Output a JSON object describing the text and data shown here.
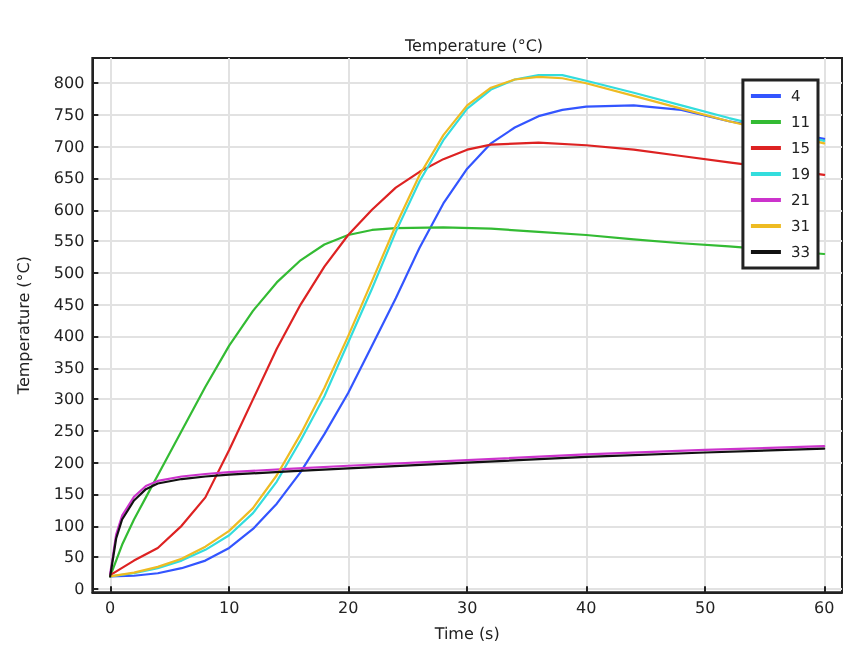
{
  "chart_data": {
    "type": "line",
    "title": "Temperature (°C)",
    "xlabel": "Time (s)",
    "ylabel": "Temperature (°C)",
    "xlim": [
      -1.5,
      61.5
    ],
    "ylim": [
      -5,
      840
    ],
    "xticks": [
      0,
      10,
      20,
      30,
      40,
      50,
      60
    ],
    "yticks": [
      0,
      50,
      100,
      150,
      200,
      250,
      300,
      350,
      400,
      450,
      500,
      550,
      600,
      650,
      700,
      750,
      800
    ],
    "grid": true,
    "legend": "top right",
    "marker": "none",
    "line_style": "solid",
    "series": [
      {
        "name": "4",
        "color": "#3355ff",
        "x": [
          0,
          2,
          4,
          6,
          8,
          10,
          12,
          14,
          16,
          18,
          20,
          22,
          24,
          26,
          28,
          30,
          32,
          34,
          36,
          38,
          40,
          44,
          48,
          52,
          60
        ],
        "values": [
          20,
          21,
          25,
          33,
          45,
          65,
          95,
          135,
          185,
          245,
          310,
          385,
          460,
          540,
          610,
          665,
          705,
          730,
          748,
          758,
          763,
          765,
          758,
          740,
          712
        ]
      },
      {
        "name": "11",
        "color": "#33bb33",
        "x": [
          0,
          1,
          2,
          3,
          4,
          6,
          8,
          10,
          12,
          14,
          16,
          18,
          20,
          22,
          24,
          28,
          32,
          36,
          40,
          44,
          48,
          52,
          60
        ],
        "values": [
          20,
          70,
          110,
          145,
          180,
          250,
          320,
          385,
          440,
          485,
          520,
          545,
          560,
          568,
          571,
          572,
          570,
          565,
          560,
          553,
          547,
          542,
          530
        ]
      },
      {
        "name": "15",
        "color": "#dd2222",
        "x": [
          0,
          2,
          4,
          6,
          8,
          10,
          12,
          14,
          16,
          18,
          20,
          22,
          24,
          26,
          28,
          30,
          32,
          36,
          40,
          44,
          48,
          52,
          60
        ],
        "values": [
          22,
          45,
          65,
          100,
          145,
          220,
          300,
          380,
          450,
          510,
          560,
          600,
          635,
          660,
          680,
          695,
          703,
          706,
          702,
          695,
          685,
          675,
          655
        ]
      },
      {
        "name": "19",
        "color": "#33dddd",
        "x": [
          0,
          2,
          4,
          6,
          8,
          10,
          12,
          14,
          16,
          18,
          20,
          22,
          24,
          26,
          28,
          30,
          32,
          34,
          36,
          38,
          40,
          44,
          48,
          52,
          60
        ],
        "values": [
          20,
          25,
          33,
          45,
          62,
          85,
          120,
          170,
          235,
          305,
          390,
          475,
          565,
          645,
          710,
          760,
          790,
          806,
          813,
          813,
          804,
          785,
          765,
          745,
          709
        ]
      },
      {
        "name": "21",
        "color": "#cc33cc",
        "x": [
          0,
          0.5,
          1,
          2,
          3,
          4,
          6,
          8,
          10,
          15,
          20,
          30,
          40,
          50,
          60
        ],
        "values": [
          24,
          86,
          116,
          146,
          163,
          171,
          178,
          182,
          185,
          190,
          195,
          204,
          213,
          220,
          226
        ]
      },
      {
        "name": "31",
        "color": "#eebb22",
        "x": [
          0,
          2,
          4,
          6,
          8,
          10,
          12,
          14,
          16,
          18,
          20,
          22,
          24,
          26,
          28,
          30,
          32,
          34,
          36,
          38,
          40,
          44,
          48,
          52,
          60
        ],
        "values": [
          20,
          26,
          35,
          48,
          67,
          92,
          128,
          180,
          245,
          318,
          400,
          487,
          575,
          655,
          718,
          765,
          793,
          806,
          810,
          808,
          800,
          780,
          760,
          740,
          705
        ]
      },
      {
        "name": "33",
        "color": "#111111",
        "x": [
          0,
          0.5,
          1,
          2,
          3,
          4,
          6,
          8,
          10,
          15,
          20,
          30,
          40,
          50,
          60
        ],
        "values": [
          20,
          80,
          110,
          140,
          158,
          167,
          174,
          178,
          181,
          186,
          191,
          200,
          209,
          216,
          222
        ]
      }
    ]
  }
}
